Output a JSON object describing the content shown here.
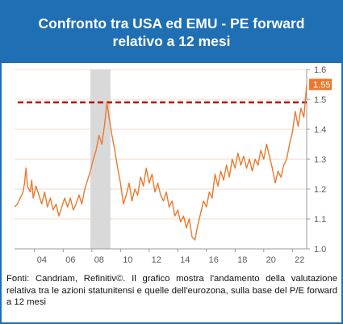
{
  "title": "Confronto tra USA ed EMU - PE forward relativo a 12 mesi",
  "caption": "Fonti: Candriam, Refinitiv©. Il grafico mostra l'andamento della valutazione relativa tra le azioni statunitensi e quelle dell'eurozona, sulla base del P/E forward a 12 mesi",
  "colors": {
    "header": "#1f6fb5",
    "line": "#e87a2e",
    "reference": "#c00000",
    "shade": "#d9d9d9",
    "badge": "#e87a2e"
  },
  "chart_data": {
    "type": "line",
    "x_tick_labels": [
      "04",
      "06",
      "08",
      "10",
      "12",
      "14",
      "16",
      "18",
      "20",
      "22"
    ],
    "x_tick_years": [
      2004,
      2006,
      2008,
      2010,
      2012,
      2014,
      2016,
      2018,
      2020,
      2022
    ],
    "xlim": [
      2002.6,
      2023.0
    ],
    "y_tick_labels": [
      "1.0",
      "1.1",
      "1.2",
      "1.3",
      "1.4",
      "1.5",
      "1.6"
    ],
    "ylim": [
      1.0,
      1.6
    ],
    "last_value_label": "1.55",
    "last_value": 1.55,
    "reference_line": 1.49,
    "shaded_period": [
      2007.9,
      2009.3
    ],
    "series": [
      {
        "points": [
          [
            2002.6,
            1.14
          ],
          [
            2002.8,
            1.15
          ],
          [
            2003.0,
            1.17
          ],
          [
            2003.2,
            1.19
          ],
          [
            2003.3,
            1.22
          ],
          [
            2003.4,
            1.27
          ],
          [
            2003.5,
            1.21
          ],
          [
            2003.7,
            1.19
          ],
          [
            2003.8,
            1.23
          ],
          [
            2003.9,
            1.17
          ],
          [
            2004.1,
            1.21
          ],
          [
            2004.3,
            1.18
          ],
          [
            2004.5,
            1.15
          ],
          [
            2004.7,
            1.19
          ],
          [
            2004.9,
            1.14
          ],
          [
            2005.1,
            1.17
          ],
          [
            2005.3,
            1.13
          ],
          [
            2005.5,
            1.15
          ],
          [
            2005.7,
            1.11
          ],
          [
            2005.9,
            1.14
          ],
          [
            2006.1,
            1.17
          ],
          [
            2006.3,
            1.14
          ],
          [
            2006.5,
            1.17
          ],
          [
            2006.7,
            1.13
          ],
          [
            2006.9,
            1.15
          ],
          [
            2007.1,
            1.18
          ],
          [
            2007.3,
            1.15
          ],
          [
            2007.5,
            1.2
          ],
          [
            2007.7,
            1.23
          ],
          [
            2007.9,
            1.26
          ],
          [
            2008.1,
            1.3
          ],
          [
            2008.3,
            1.33
          ],
          [
            2008.5,
            1.38
          ],
          [
            2008.7,
            1.35
          ],
          [
            2008.9,
            1.42
          ],
          [
            2009.05,
            1.49
          ],
          [
            2009.2,
            1.44
          ],
          [
            2009.4,
            1.38
          ],
          [
            2009.6,
            1.33
          ],
          [
            2009.8,
            1.27
          ],
          [
            2010.0,
            1.22
          ],
          [
            2010.2,
            1.15
          ],
          [
            2010.4,
            1.18
          ],
          [
            2010.6,
            1.22
          ],
          [
            2010.8,
            1.16
          ],
          [
            2011.0,
            1.2
          ],
          [
            2011.2,
            1.18
          ],
          [
            2011.4,
            1.24
          ],
          [
            2011.6,
            1.21
          ],
          [
            2011.8,
            1.27
          ],
          [
            2012.0,
            1.22
          ],
          [
            2012.2,
            1.25
          ],
          [
            2012.4,
            1.19
          ],
          [
            2012.6,
            1.22
          ],
          [
            2012.8,
            1.18
          ],
          [
            2013.0,
            1.16
          ],
          [
            2013.2,
            1.19
          ],
          [
            2013.4,
            1.14
          ],
          [
            2013.6,
            1.16
          ],
          [
            2013.8,
            1.11
          ],
          [
            2014.0,
            1.13
          ],
          [
            2014.2,
            1.09
          ],
          [
            2014.4,
            1.11
          ],
          [
            2014.6,
            1.07
          ],
          [
            2014.8,
            1.1
          ],
          [
            2015.0,
            1.04
          ],
          [
            2015.2,
            1.03
          ],
          [
            2015.4,
            1.08
          ],
          [
            2015.6,
            1.12
          ],
          [
            2015.8,
            1.16
          ],
          [
            2016.0,
            1.14
          ],
          [
            2016.2,
            1.19
          ],
          [
            2016.4,
            1.17
          ],
          [
            2016.6,
            1.25
          ],
          [
            2016.8,
            1.21
          ],
          [
            2017.0,
            1.26
          ],
          [
            2017.2,
            1.23
          ],
          [
            2017.4,
            1.28
          ],
          [
            2017.6,
            1.24
          ],
          [
            2017.8,
            1.3
          ],
          [
            2018.0,
            1.27
          ],
          [
            2018.2,
            1.32
          ],
          [
            2018.4,
            1.28
          ],
          [
            2018.6,
            1.31
          ],
          [
            2018.8,
            1.27
          ],
          [
            2019.0,
            1.3
          ],
          [
            2019.2,
            1.26
          ],
          [
            2019.4,
            1.3
          ],
          [
            2019.6,
            1.28
          ],
          [
            2019.8,
            1.33
          ],
          [
            2020.0,
            1.3
          ],
          [
            2020.2,
            1.35
          ],
          [
            2020.4,
            1.31
          ],
          [
            2020.6,
            1.27
          ],
          [
            2020.8,
            1.22
          ],
          [
            2021.0,
            1.26
          ],
          [
            2021.2,
            1.24
          ],
          [
            2021.4,
            1.28
          ],
          [
            2021.6,
            1.3
          ],
          [
            2021.8,
            1.35
          ],
          [
            2022.0,
            1.39
          ],
          [
            2022.2,
            1.46
          ],
          [
            2022.4,
            1.41
          ],
          [
            2022.6,
            1.47
          ],
          [
            2022.8,
            1.44
          ],
          [
            2023.0,
            1.55
          ]
        ]
      }
    ]
  }
}
